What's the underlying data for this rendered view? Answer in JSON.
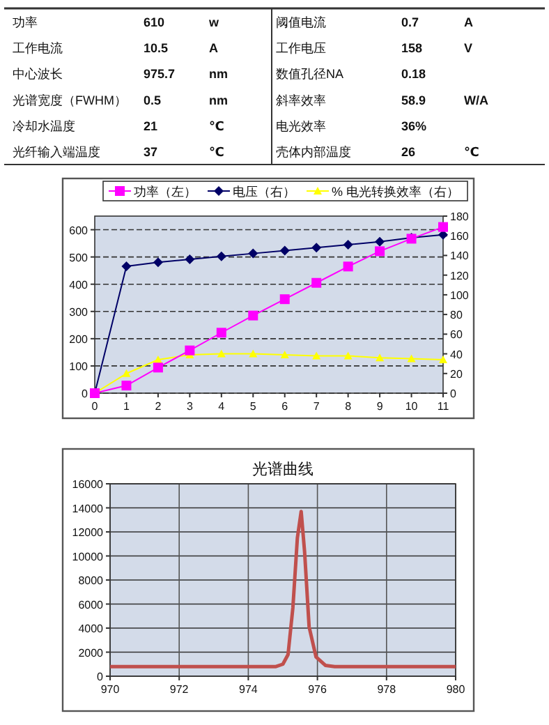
{
  "chart_data": [
    {
      "type": "other",
      "cell_labels": [
        [
          "功率",
          "610",
          "w",
          "阈值电流",
          "0.7",
          "A"
        ],
        [
          "工作电流",
          "10.5",
          "A",
          "工作电压",
          "158",
          "V"
        ],
        [
          "中心波长",
          "975.7",
          "nm",
          "数值孔径NA",
          "0.18",
          null
        ],
        [
          "光谱宽度（FWHM）",
          "0.5",
          "nm",
          "斜率效率",
          "58.9",
          "W/A"
        ],
        [
          "冷却水温度",
          "21",
          "℃",
          "电光效率",
          "36%",
          null
        ],
        [
          "光纤输入端温度",
          "37",
          "℃",
          "壳体内部温度",
          "26",
          "℃"
        ]
      ]
    },
    {
      "type": "line",
      "x": [
        0,
        1,
        2,
        3,
        4,
        5,
        6,
        7,
        8,
        9,
        10,
        11
      ],
      "xlim": [
        0,
        11
      ],
      "xticks": [
        0,
        1,
        2,
        3,
        4,
        5,
        6,
        7,
        8,
        9,
        10,
        11
      ],
      "ylim": [
        0,
        650
      ],
      "yticks": [
        0,
        100,
        200,
        300,
        400,
        500,
        600
      ],
      "y2lim": [
        0,
        180
      ],
      "y2ticks": [
        0,
        20,
        40,
        60,
        80,
        100,
        120,
        140,
        160,
        180
      ],
      "grid": "y",
      "legend": "top",
      "series": [
        {
          "name": "功率（左）",
          "color": "#ff00ff",
          "marker": "square",
          "values": [
            0,
            28,
            94,
            157,
            222,
            285,
            345,
            405,
            465,
            521,
            567,
            610
          ]
        },
        {
          "name": "电压（右）",
          "color": "#000066",
          "marker": "diamond",
          "axis": "y2",
          "values": [
            0,
            129,
            133,
            136,
            139,
            142,
            145,
            148,
            151,
            154,
            158,
            161
          ]
        },
        {
          "name": "% 电光转换效率（右）",
          "color": "#ffff00",
          "marker": "triangle",
          "axis": "y2",
          "values": [
            0,
            20,
            34,
            39,
            40,
            40,
            39,
            38,
            38,
            36,
            35,
            34
          ]
        }
      ]
    },
    {
      "type": "line",
      "title": "光谱曲线",
      "xlim": [
        970,
        980
      ],
      "xticks": [
        970,
        972,
        974,
        976,
        978,
        980
      ],
      "ylim": [
        0,
        16000
      ],
      "yticks": [
        0,
        2000,
        4000,
        6000,
        8000,
        10000,
        12000,
        14000,
        16000
      ],
      "grid": true,
      "marker": "none",
      "series": [
        {
          "color": "#c0504d",
          "x": [
            970,
            971,
            972,
            973,
            974,
            974.5,
            974.8,
            975.0,
            975.15,
            975.29,
            975.42,
            975.53,
            975.63,
            975.76,
            975.96,
            976.23,
            976.5,
            977,
            978,
            979,
            980
          ],
          "values": [
            800,
            800,
            800,
            800,
            800,
            800,
            800,
            1000,
            1800,
            5700,
            11500,
            13700,
            10300,
            4100,
            1600,
            900,
            800,
            800,
            800,
            800,
            800
          ]
        }
      ]
    }
  ]
}
